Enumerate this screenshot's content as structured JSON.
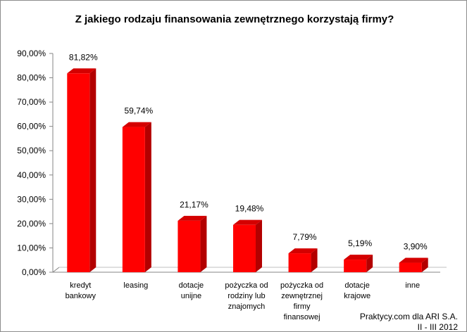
{
  "chart_data": {
    "type": "bar",
    "title": "Z jakiego rodzaju finansowania zewnętrznego korzystają firmy?",
    "categories": [
      [
        "kredyt",
        "bankowy"
      ],
      [
        "leasing"
      ],
      [
        "dotacje",
        "unijne"
      ],
      [
        "pożyczka od",
        "rodziny lub",
        "znajomych"
      ],
      [
        "pożyczka od",
        "zewnętrznej",
        "firmy",
        "finansowej"
      ],
      [
        "dotacje",
        "krajowe"
      ],
      [
        "inne"
      ]
    ],
    "values": [
      81.82,
      59.74,
      21.17,
      19.48,
      7.79,
      5.19,
      3.9
    ],
    "value_labels": [
      "81,82%",
      "59,74%",
      "21,17%",
      "19,48%",
      "7,79%",
      "5,19%",
      "3,90%"
    ],
    "ylim": [
      0,
      90
    ],
    "yticks": [
      "0,00%",
      "10,00%",
      "20,00%",
      "30,00%",
      "40,00%",
      "50,00%",
      "60,00%",
      "70,00%",
      "80,00%",
      "90,00%"
    ],
    "grid": false,
    "legend": "none",
    "bar_color": "#ff0000",
    "bar_side_color": "#b30000",
    "bar_top_color": "#d40000"
  },
  "source": {
    "line1": "Praktycy.com dla ARI S.A.",
    "line2": "II - III 2012"
  }
}
